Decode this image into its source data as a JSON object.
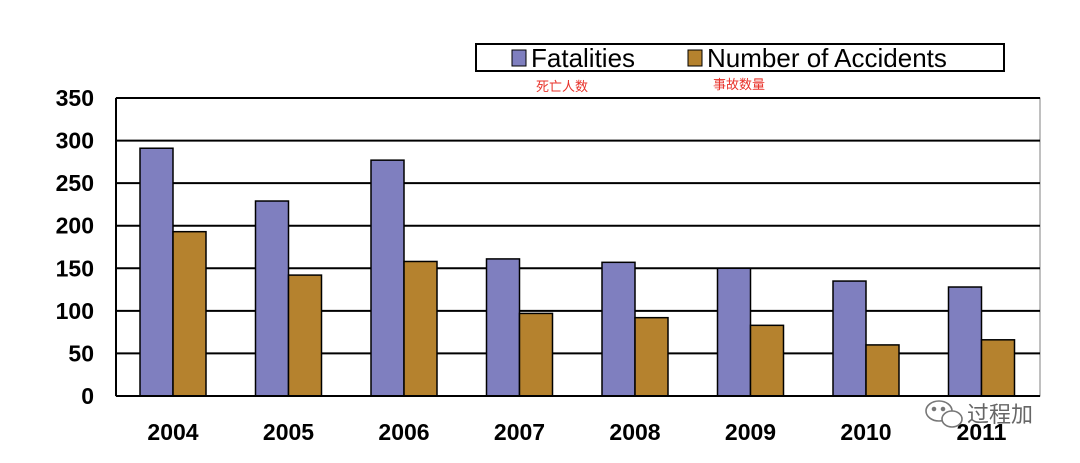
{
  "chart_data": {
    "type": "bar",
    "categories": [
      "2004",
      "2005",
      "2006",
      "2007",
      "2008",
      "2009",
      "2010",
      "2011"
    ],
    "series": [
      {
        "name": "Fatalities",
        "color": "#7f7fbf",
        "values": [
          291,
          229,
          277,
          161,
          157,
          150,
          135,
          128
        ]
      },
      {
        "name": "Number of Accidents",
        "color": "#b5822e",
        "values": [
          193,
          142,
          158,
          97,
          92,
          83,
          60,
          66
        ]
      }
    ],
    "ylim": [
      0,
      350
    ],
    "yticks": [
      "0",
      "50",
      "100",
      "150",
      "200",
      "250",
      "300",
      "350"
    ],
    "grid": true,
    "legend_position": "top-right"
  },
  "annotations": {
    "fatalities_cn": "死亡人数",
    "accidents_cn": "事故数量"
  },
  "watermark": {
    "text": "过程加",
    "icon": "wechat-icon"
  }
}
